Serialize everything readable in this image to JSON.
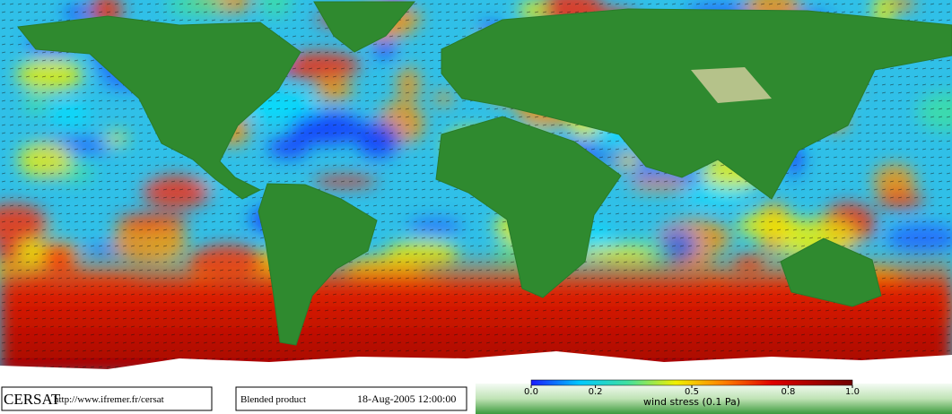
{
  "footer": {
    "logo": "CERSAT",
    "url": "http://www.ifremer.fr/cersat",
    "product": "Blended product",
    "timestamp": "18-Aug-2005 12:00:00"
  },
  "colorbar": {
    "label": "wind stress (0.1 Pa)",
    "range": [
      0,
      1
    ],
    "ticks": [
      {
        "value": 0,
        "label": "0.0"
      },
      {
        "value": 0.2,
        "label": "0.2"
      },
      {
        "value": 0.5,
        "label": "0.5"
      },
      {
        "value": 0.8,
        "label": "0.8"
      },
      {
        "value": 1,
        "label": "1.0"
      }
    ]
  }
}
